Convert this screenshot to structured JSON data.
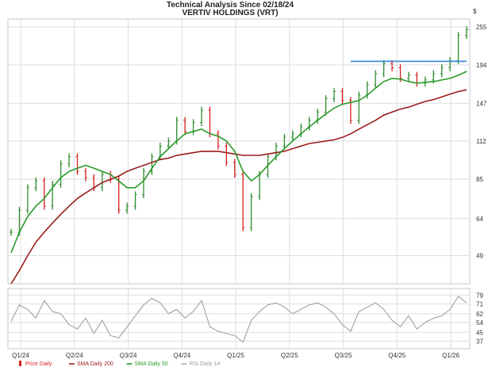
{
  "header": {
    "title": "Technical Analysis Since 02/18/24",
    "subtitle": "VERTIV HOLDINGS (VRT)",
    "currency_symbol": "$"
  },
  "colors": {
    "up": "#2e8b2e",
    "down": "#d42020",
    "sma200": "#9b1c1c",
    "sma50": "#2a9a2a",
    "rsi": "#a8a8a8",
    "resistance": "#3b8fd9",
    "grid": "#dedede",
    "panel_bg": "#eeeeee"
  },
  "chart_data": [
    {
      "type": "line",
      "name": "price-panel",
      "title": "Technical Analysis Since 02/18/24",
      "subtitle": "VERTIV HOLDINGS (VRT)",
      "y_scale": "log",
      "ylim": [
        40,
        270
      ],
      "y_ticks": [
        255,
        194,
        147,
        112,
        85,
        64,
        49
      ],
      "x_ticks": [
        "Q1/24",
        "Q2/24",
        "Q3/24",
        "Q4/24",
        "Q1/25",
        "Q2/25",
        "Q3/25",
        "Q4/25",
        "Q1/26"
      ],
      "grid": true,
      "series": [
        {
          "name": "Price Daily",
          "style": "ohlc-bars",
          "values": [
            58,
            68,
            80,
            84,
            70,
            82,
            95,
            100,
            90,
            86,
            80,
            88,
            85,
            68,
            70,
            76,
            90,
            100,
            108,
            112,
            130,
            120,
            128,
            140,
            118,
            108,
            96,
            88,
            60,
            75,
            88,
            100,
            108,
            115,
            118,
            124,
            130,
            138,
            152,
            160,
            150,
            130,
            156,
            168,
            182,
            196,
            190,
            176,
            180,
            170,
            174,
            182,
            190,
            200,
            240,
            250
          ]
        },
        {
          "name": "SMA Daily 200",
          "values": [
            40,
            44,
            49,
            54,
            58,
            62,
            66,
            70,
            74,
            77,
            80,
            83,
            85,
            87,
            90,
            92,
            94,
            96,
            98,
            99,
            101,
            102,
            103,
            104,
            104,
            104,
            103,
            102,
            101,
            101,
            101,
            102,
            103,
            104,
            106,
            108,
            110,
            111,
            112,
            113,
            115,
            118,
            122,
            126,
            130,
            135,
            138,
            141,
            143,
            146,
            149,
            151,
            154,
            157,
            160,
            162
          ]
        },
        {
          "name": "SMA Daily 50",
          "values": [
            50,
            58,
            65,
            70,
            74,
            80,
            86,
            90,
            92,
            94,
            92,
            90,
            88,
            84,
            80,
            80,
            84,
            92,
            100,
            106,
            112,
            118,
            120,
            122,
            118,
            116,
            112,
            104,
            90,
            84,
            88,
            94,
            100,
            106,
            112,
            118,
            124,
            130,
            136,
            142,
            146,
            148,
            150,
            156,
            164,
            172,
            176,
            175,
            172,
            170,
            171,
            172,
            174,
            176,
            180,
            185
          ]
        }
      ],
      "annotations": [
        {
          "type": "horizontal-line",
          "value": 199,
          "x_start_index": 41,
          "x_end_index": 55
        }
      ]
    },
    {
      "type": "line",
      "name": "rsi-panel",
      "ylim": [
        30,
        85
      ],
      "y_ticks": [
        79,
        71,
        62,
        54,
        45,
        37
      ],
      "grid": true,
      "series": [
        {
          "name": "RSI Daily 14",
          "values": [
            55,
            70,
            66,
            58,
            74,
            64,
            62,
            52,
            48,
            58,
            44,
            56,
            42,
            40,
            50,
            60,
            70,
            76,
            72,
            62,
            66,
            58,
            64,
            74,
            50,
            46,
            44,
            42,
            36,
            56,
            64,
            70,
            72,
            68,
            62,
            66,
            70,
            72,
            68,
            62,
            52,
            46,
            64,
            68,
            72,
            66,
            56,
            50,
            60,
            48,
            54,
            58,
            60,
            66,
            78,
            72
          ]
        }
      ]
    }
  ],
  "legend": [
    {
      "label": "Price Daily",
      "marker": "bar-red"
    },
    {
      "label": "SMA Daily 200",
      "marker": "line-darkred"
    },
    {
      "label": "SMA Daily 50",
      "marker": "line-green"
    },
    {
      "label": "RSI Daily 14",
      "marker": "line-gray"
    }
  ]
}
